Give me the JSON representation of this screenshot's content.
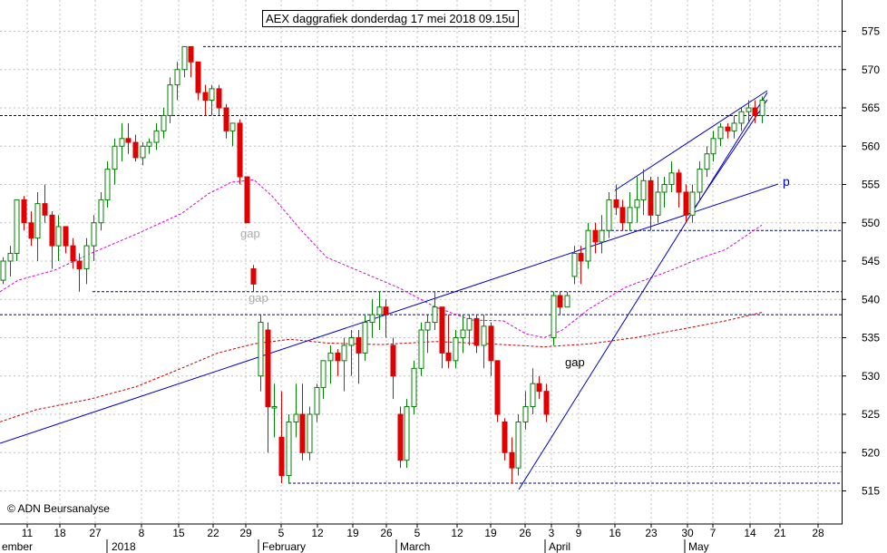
{
  "title": "AEX daggrafiek donderdag 17 mei 2018 09.15u",
  "copyright": "© ADN Beursanalyse",
  "chart_data": {
    "type": "candlestick",
    "ylim": [
      512,
      578
    ],
    "y_ticks": [
      515,
      520,
      525,
      530,
      535,
      540,
      545,
      550,
      555,
      560,
      565,
      570,
      575
    ],
    "grid": true,
    "x_day_labels": [
      "11",
      "18",
      "27",
      "8",
      "15",
      "22",
      "29",
      "5",
      "12",
      "19",
      "26",
      "5",
      "12",
      "19",
      "26",
      "3",
      "9",
      "16",
      "23",
      "30",
      "7",
      "14",
      "21",
      "28"
    ],
    "x_month_labels": [
      "ember",
      "2018",
      "February",
      "March",
      "April",
      "May"
    ],
    "annotations": [
      {
        "text": "gap",
        "color": "#aaaaaa"
      },
      {
        "text": "gap",
        "color": "#aaaaaa"
      },
      {
        "text": "gap",
        "color": "#000000"
      },
      {
        "text": "p",
        "color": "#0000cc"
      }
    ],
    "horizontal_levels": [
      573,
      564,
      549,
      541,
      538,
      516
    ],
    "colors": {
      "up": "#008000",
      "down": "#e00000",
      "trend": "#0000cc",
      "ma_short": "#dd00dd",
      "ma_long": "#cc0000",
      "level": "#000080",
      "grid": "#c0c0c0"
    },
    "series": [
      {
        "name": "",
        "kind": "ohlc",
        "values": [
          [
            542.5,
            545.5,
            542,
            545
          ],
          [
            545,
            547,
            543,
            546
          ],
          [
            546,
            553,
            545,
            553
          ],
          [
            553,
            553.5,
            549,
            550
          ],
          [
            550,
            551.5,
            547,
            548
          ],
          [
            548,
            554,
            545,
            552.5
          ],
          [
            552.5,
            555,
            550,
            551
          ],
          [
            551,
            551.5,
            544,
            547
          ],
          [
            547,
            551,
            545,
            549.5
          ],
          [
            549.5,
            549.5,
            546,
            547
          ],
          [
            547,
            548,
            544,
            545
          ],
          [
            545,
            546,
            541,
            544
          ],
          [
            544,
            548,
            542,
            547
          ],
          [
            547,
            551,
            545,
            550
          ],
          [
            550,
            554,
            549,
            553
          ],
          [
            553,
            558,
            552,
            557
          ],
          [
            557,
            561,
            555,
            560
          ],
          [
            560,
            563,
            558,
            561
          ],
          [
            561,
            563,
            559,
            560.5
          ],
          [
            560.5,
            561.5,
            558,
            558.5
          ],
          [
            558.5,
            560.5,
            557.5,
            560
          ],
          [
            560,
            561,
            559,
            560.5
          ],
          [
            560.5,
            563,
            559.5,
            562
          ],
          [
            562,
            565,
            561,
            564
          ],
          [
            564,
            569,
            563,
            568
          ],
          [
            568,
            571,
            566,
            570
          ],
          [
            570,
            573,
            569,
            573
          ],
          [
            573,
            573,
            569,
            571
          ],
          [
            571,
            571,
            566,
            567
          ],
          [
            567,
            568,
            564,
            566
          ],
          [
            566,
            568,
            564,
            567.5
          ],
          [
            567.5,
            568,
            564,
            565
          ],
          [
            565,
            565.5,
            561,
            562
          ],
          [
            562,
            563,
            560,
            563
          ],
          [
            563,
            563.5,
            555,
            556
          ],
          [
            556,
            556,
            550,
            550
          ],
          [
            544,
            544.5,
            541,
            542
          ],
          [
            530,
            538,
            528,
            537
          ],
          [
            536,
            537,
            520,
            526
          ],
          [
            526,
            529,
            522,
            526
          ],
          [
            522,
            528,
            516,
            517
          ],
          [
            517,
            525,
            516,
            524
          ],
          [
            524,
            529,
            522,
            525
          ],
          [
            525,
            529,
            519,
            520
          ],
          [
            520,
            526,
            519,
            525
          ],
          [
            525,
            529,
            524,
            528.5
          ],
          [
            528.5,
            532,
            527,
            532
          ],
          [
            532,
            534,
            529,
            533
          ],
          [
            533,
            533.5,
            530,
            532
          ],
          [
            532,
            535,
            528,
            534
          ],
          [
            534,
            536,
            530,
            535
          ],
          [
            535,
            536,
            529,
            533
          ],
          [
            533,
            538,
            532,
            537
          ],
          [
            537,
            540,
            535,
            538
          ],
          [
            538,
            541,
            536,
            539
          ],
          [
            539,
            540,
            535,
            538
          ],
          [
            534,
            535,
            527,
            530
          ],
          [
            525,
            526,
            518,
            519
          ],
          [
            519,
            527,
            518,
            526
          ],
          [
            526,
            532,
            525,
            531
          ],
          [
            531,
            537,
            530,
            536
          ],
          [
            536,
            538,
            533,
            537
          ],
          [
            537,
            541,
            536,
            539
          ],
          [
            539,
            539,
            531,
            533
          ],
          [
            533,
            538,
            531,
            532
          ],
          [
            532,
            536,
            531,
            535
          ],
          [
            535,
            538,
            533,
            536
          ],
          [
            536,
            538,
            534,
            537.5
          ],
          [
            537.5,
            538,
            533,
            534
          ],
          [
            534,
            538,
            531,
            536.5
          ],
          [
            536.5,
            537,
            530,
            532
          ],
          [
            532,
            532,
            524,
            525
          ],
          [
            524,
            524.5,
            519,
            520
          ],
          [
            520,
            522,
            516,
            518
          ],
          [
            518,
            525,
            517,
            524
          ],
          [
            524,
            528,
            523,
            526
          ],
          [
            526,
            531,
            525,
            529
          ],
          [
            529,
            530,
            527,
            528
          ],
          [
            528,
            529,
            524,
            525
          ],
          [
            535,
            541,
            534,
            540.5
          ],
          [
            540.5,
            541,
            538,
            539
          ],
          [
            539,
            541,
            539,
            540.5
          ],
          [
            543,
            547,
            542,
            546
          ],
          [
            546,
            547,
            542,
            545
          ],
          [
            545,
            550,
            544,
            549
          ],
          [
            549,
            550,
            546,
            547.5
          ],
          [
            547.5,
            551,
            546,
            549
          ],
          [
            549,
            554,
            548,
            553
          ],
          [
            553,
            555,
            551,
            552
          ],
          [
            552,
            553,
            549,
            550
          ],
          [
            550,
            554,
            549,
            552
          ],
          [
            552,
            556,
            550,
            553
          ],
          [
            553,
            557,
            551,
            555.5
          ],
          [
            555.5,
            556,
            549,
            551
          ],
          [
            551,
            556,
            550,
            554
          ],
          [
            554,
            556,
            552,
            555
          ],
          [
            555,
            558,
            554,
            556.5
          ],
          [
            556.5,
            557,
            552,
            554
          ],
          [
            554,
            555,
            550,
            551
          ],
          [
            551,
            555,
            550,
            554
          ],
          [
            554,
            558,
            553,
            557
          ],
          [
            557,
            560,
            556,
            559
          ],
          [
            559,
            562,
            558,
            561
          ],
          [
            561,
            563,
            560,
            562.5
          ],
          [
            562.5,
            563,
            561,
            562
          ],
          [
            562,
            564,
            561,
            563
          ],
          [
            563,
            565,
            562,
            564.5
          ],
          [
            564.5,
            566,
            563,
            565
          ],
          [
            565,
            566,
            563,
            564
          ],
          [
            564,
            566.5,
            563,
            566
          ]
        ]
      },
      {
        "name": "",
        "kind": "moving_average",
        "values": [
          [
            0,
            541
          ],
          [
            20,
            542.5
          ],
          [
            60,
            543.8
          ],
          [
            100,
            546
          ],
          [
            150,
            548.5
          ],
          [
            200,
            551.2
          ],
          [
            230,
            553.8
          ],
          [
            255,
            555.3
          ],
          [
            280,
            555.6
          ],
          [
            300,
            553.5
          ],
          [
            330,
            549.3
          ],
          [
            360,
            545.5
          ],
          [
            400,
            543.5
          ],
          [
            440,
            541.5
          ],
          [
            480,
            539
          ],
          [
            520,
            537.3
          ],
          [
            555,
            537.2
          ],
          [
            580,
            535.5
          ],
          [
            600,
            535
          ],
          [
            620,
            536
          ],
          [
            650,
            538.8
          ],
          [
            690,
            541.6
          ],
          [
            740,
            543.8
          ],
          [
            770,
            545.3
          ],
          [
            800,
            546.5
          ],
          [
            840,
            549.7
          ]
        ]
      },
      {
        "name": "",
        "kind": "moving_average",
        "values": [
          [
            0,
            524
          ],
          [
            40,
            525.6
          ],
          [
            100,
            527
          ],
          [
            150,
            528.6
          ],
          [
            200,
            531
          ],
          [
            240,
            533
          ],
          [
            280,
            534.2
          ],
          [
            320,
            534.8
          ],
          [
            360,
            534.3
          ],
          [
            420,
            534.1
          ],
          [
            480,
            534.5
          ],
          [
            540,
            534.2
          ],
          [
            600,
            533.8
          ],
          [
            650,
            534.2
          ],
          [
            700,
            535
          ],
          [
            760,
            536.3
          ],
          [
            800,
            537.2
          ],
          [
            840,
            538.3
          ]
        ]
      }
    ]
  }
}
